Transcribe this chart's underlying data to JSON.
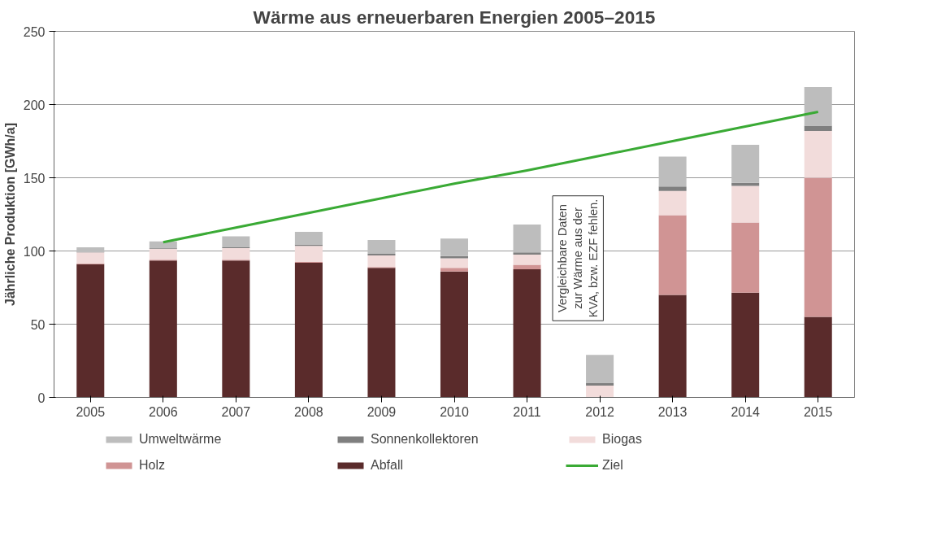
{
  "chart_data": {
    "type": "bar",
    "stacked": true,
    "title": "Wärme aus erneuerbaren Energien 2005–2015",
    "ylabel": "Jährliche Produktion [GWh/a]",
    "categories": [
      "2005",
      "2006",
      "2007",
      "2008",
      "2009",
      "2010",
      "2011",
      "2012",
      "2013",
      "2014",
      "2015"
    ],
    "series": [
      {
        "name": "Abfall",
        "color": "#5a2b2b",
        "values": [
          91,
          93.5,
          93.5,
          92,
          88.5,
          86,
          87.5,
          null,
          70,
          71.5,
          55
        ]
      },
      {
        "name": "Holz",
        "color": "#d09494",
        "values": [
          0.5,
          0.5,
          0.5,
          0.5,
          0.5,
          2.5,
          3,
          null,
          54.5,
          48,
          95
        ]
      },
      {
        "name": "Biogas",
        "color": "#f2dcdb",
        "values": [
          7.5,
          7.5,
          8,
          11,
          8,
          6.5,
          7,
          8,
          16.5,
          25,
          32
        ]
      },
      {
        "name": "Sonnenkollektoren",
        "color": "#7f7f7f",
        "values": [
          0.5,
          0.5,
          0.5,
          1,
          1,
          1.5,
          1.5,
          2,
          3,
          2,
          3.5
        ]
      },
      {
        "name": "Umweltwärme",
        "color": "#bdbdbd",
        "values": [
          3,
          4.5,
          7.5,
          8.5,
          9.5,
          12,
          19,
          19,
          20.5,
          26,
          26.5
        ]
      },
      {
        "name": "Ziel",
        "type": "line",
        "color": "#3aaa35",
        "values": [
          null,
          106,
          116,
          126,
          136,
          146,
          155,
          165,
          175,
          185,
          195
        ]
      }
    ],
    "ylim": [
      0,
      250
    ],
    "yticks": [
      0,
      50,
      100,
      150,
      200,
      250
    ],
    "grid": "y",
    "legend": "bottom",
    "annotations": [
      "Vergleichbare Daten\nzur Wärme aus der\nKVA, bzw. EZF fehlen."
    ]
  }
}
